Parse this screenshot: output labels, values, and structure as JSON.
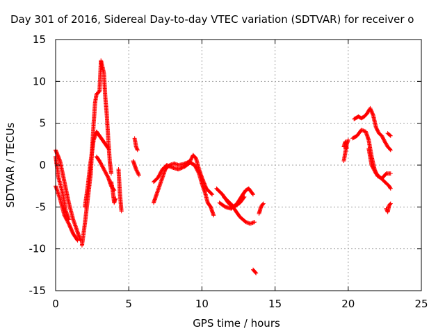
{
  "chart_data": {
    "type": "scatter",
    "title": "Day 301 of 2016, Sidereal Day-to-day VTEC variation (SDTVAR) for receiver o",
    "xlabel": "GPS time / hours",
    "ylabel": "SDTVAR / TECUs",
    "xlim": [
      0,
      25
    ],
    "ylim": [
      -15,
      15
    ],
    "x_ticks": [
      0,
      5,
      10,
      15,
      20,
      25
    ],
    "y_ticks": [
      -15,
      -10,
      -5,
      0,
      5,
      10,
      15
    ],
    "x_tick_labels": [
      "0",
      "5",
      "10",
      "15",
      "20",
      "25"
    ],
    "y_tick_labels": [
      "-15",
      "-10",
      "-5",
      "0",
      "5",
      "10",
      "15"
    ],
    "grid": true,
    "marker": "+",
    "series": [
      {
        "name": "SDTVAR",
        "color": "#ff0000",
        "tracks": [
          [
            [
              0.0,
              1.8
            ],
            [
              0.3,
              0.5
            ],
            [
              0.6,
              -2.0
            ],
            [
              0.9,
              -4.5
            ],
            [
              1.2,
              -6.5
            ],
            [
              1.5,
              -8.0
            ],
            [
              1.7,
              -9.0
            ]
          ],
          [
            [
              0.0,
              -2.5
            ],
            [
              0.3,
              -4.0
            ],
            [
              0.6,
              -6.0
            ],
            [
              0.9,
              -7.0
            ],
            [
              1.2,
              -8.2
            ],
            [
              1.5,
              -9.0
            ]
          ],
          [
            [
              0.0,
              1.0
            ],
            [
              0.2,
              -1.5
            ],
            [
              0.5,
              -3.5
            ],
            [
              0.7,
              -5.5
            ],
            [
              0.9,
              -6.5
            ]
          ],
          [
            [
              1.8,
              -9.6
            ],
            [
              2.0,
              -7.0
            ],
            [
              2.2,
              -4.0
            ],
            [
              2.4,
              -1.0
            ],
            [
              2.5,
              2.0
            ],
            [
              2.6,
              5.0
            ],
            [
              2.7,
              7.5
            ],
            [
              2.8,
              8.5
            ],
            [
              3.0,
              8.8
            ],
            [
              3.1,
              12.5
            ],
            [
              3.3,
              11.0
            ],
            [
              3.4,
              8.0
            ],
            [
              3.5,
              6.0
            ],
            [
              3.6,
              3.0
            ],
            [
              3.7,
              0.5
            ],
            [
              3.8,
              -1.0
            ]
          ],
          [
            [
              2.0,
              -5.0
            ],
            [
              2.2,
              -2.5
            ],
            [
              2.4,
              0.5
            ],
            [
              2.6,
              3.0
            ],
            [
              2.8,
              4.0
            ],
            [
              3.0,
              3.5
            ],
            [
              3.2,
              3.0
            ],
            [
              3.4,
              2.5
            ],
            [
              3.6,
              2.0
            ]
          ],
          [
            [
              2.8,
              1.0
            ],
            [
              3.0,
              0.5
            ],
            [
              3.3,
              -0.5
            ],
            [
              3.6,
              -1.5
            ],
            [
              3.8,
              -2.5
            ],
            [
              4.0,
              -3.0
            ]
          ],
          [
            [
              3.8,
              -2.0
            ],
            [
              3.9,
              -3.0
            ],
            [
              4.0,
              -4.5
            ],
            [
              4.1,
              -4.0
            ]
          ],
          [
            [
              4.3,
              -0.5
            ],
            [
              4.35,
              -2.0
            ],
            [
              4.4,
              -3.5
            ],
            [
              4.45,
              -4.5
            ],
            [
              4.5,
              -5.5
            ]
          ],
          [
            [
              5.4,
              3.2
            ],
            [
              5.5,
              2.2
            ],
            [
              5.6,
              1.8
            ]
          ],
          [
            [
              5.3,
              0.5
            ],
            [
              5.5,
              -0.5
            ],
            [
              5.7,
              -1.2
            ]
          ],
          [
            [
              6.7,
              -4.5
            ],
            [
              6.9,
              -3.5
            ],
            [
              7.2,
              -2.0
            ],
            [
              7.5,
              -0.5
            ],
            [
              7.8,
              0.0
            ],
            [
              8.1,
              0.2
            ],
            [
              8.4,
              0.0
            ],
            [
              8.7,
              0.1
            ],
            [
              9.0,
              0.3
            ],
            [
              9.2,
              0.5
            ],
            [
              9.4,
              1.2
            ],
            [
              9.6,
              0.8
            ],
            [
              9.8,
              -0.5
            ],
            [
              10.0,
              -1.5
            ],
            [
              10.3,
              -2.8
            ],
            [
              10.7,
              -3.5
            ]
          ],
          [
            [
              6.7,
              -2.0
            ],
            [
              7.0,
              -1.5
            ],
            [
              7.3,
              -0.5
            ],
            [
              7.6,
              0.0
            ],
            [
              8.0,
              -0.3
            ],
            [
              8.4,
              -0.5
            ],
            [
              8.8,
              -0.2
            ],
            [
              9.2,
              0.3
            ],
            [
              9.5,
              0.0
            ],
            [
              9.8,
              -1.0
            ],
            [
              10.0,
              -2.2
            ],
            [
              10.2,
              -3.2
            ],
            [
              10.4,
              -4.5
            ],
            [
              10.6,
              -5.0
            ],
            [
              10.8,
              -6.0
            ]
          ],
          [
            [
              11.0,
              -2.8
            ],
            [
              11.4,
              -3.5
            ],
            [
              11.8,
              -4.5
            ],
            [
              12.2,
              -5.2
            ],
            [
              12.6,
              -6.2
            ],
            [
              13.0,
              -6.8
            ],
            [
              13.3,
              -7.0
            ],
            [
              13.6,
              -6.8
            ]
          ],
          [
            [
              11.2,
              -4.5
            ],
            [
              11.6,
              -5.0
            ],
            [
              12.0,
              -5.2
            ],
            [
              12.4,
              -4.6
            ],
            [
              12.8,
              -3.5
            ],
            [
              13.0,
              -3.0
            ],
            [
              13.2,
              -2.8
            ],
            [
              13.5,
              -3.5
            ]
          ],
          [
            [
              11.5,
              -3.8
            ],
            [
              11.9,
              -4.5
            ],
            [
              12.2,
              -5.0
            ],
            [
              12.6,
              -4.5
            ],
            [
              12.9,
              -3.8
            ]
          ],
          [
            [
              13.5,
              -12.5
            ],
            [
              13.7,
              -12.9
            ]
          ],
          [
            [
              13.9,
              -5.8
            ],
            [
              14.0,
              -5.2
            ],
            [
              14.1,
              -4.8
            ],
            [
              14.2,
              -4.6
            ]
          ],
          [
            [
              19.7,
              0.5
            ],
            [
              19.8,
              1.5
            ],
            [
              19.9,
              2.5
            ],
            [
              20.0,
              3.0
            ]
          ],
          [
            [
              19.7,
              2.2
            ],
            [
              19.8,
              2.8
            ],
            [
              19.9,
              2.0
            ]
          ],
          [
            [
              20.3,
              3.2
            ],
            [
              20.6,
              3.5
            ],
            [
              20.9,
              4.2
            ],
            [
              21.2,
              4.0
            ],
            [
              21.4,
              3.0
            ],
            [
              21.6,
              1.0
            ],
            [
              21.8,
              -0.5
            ],
            [
              22.0,
              -1.3
            ],
            [
              22.3,
              -1.6
            ],
            [
              22.6,
              -1.0
            ],
            [
              22.9,
              -1.0
            ]
          ],
          [
            [
              20.4,
              5.5
            ],
            [
              20.7,
              5.8
            ],
            [
              20.9,
              5.6
            ],
            [
              21.1,
              5.8
            ],
            [
              21.3,
              6.2
            ],
            [
              21.5,
              6.8
            ],
            [
              21.7,
              6.0
            ],
            [
              21.9,
              4.5
            ],
            [
              22.1,
              3.8
            ],
            [
              22.3,
              3.5
            ],
            [
              22.5,
              2.8
            ],
            [
              22.7,
              2.2
            ],
            [
              22.9,
              1.8
            ]
          ],
          [
            [
              21.4,
              2.0
            ],
            [
              21.6,
              0.0
            ],
            [
              21.9,
              -1.0
            ],
            [
              22.2,
              -1.5
            ],
            [
              22.5,
              -2.0
            ],
            [
              22.8,
              -2.5
            ],
            [
              22.9,
              -2.8
            ]
          ],
          [
            [
              22.6,
              -5.2
            ],
            [
              22.7,
              -5.6
            ],
            [
              22.8,
              -4.8
            ],
            [
              22.9,
              -4.6
            ]
          ],
          [
            [
              22.7,
              3.8
            ],
            [
              22.9,
              3.5
            ]
          ]
        ]
      }
    ]
  }
}
